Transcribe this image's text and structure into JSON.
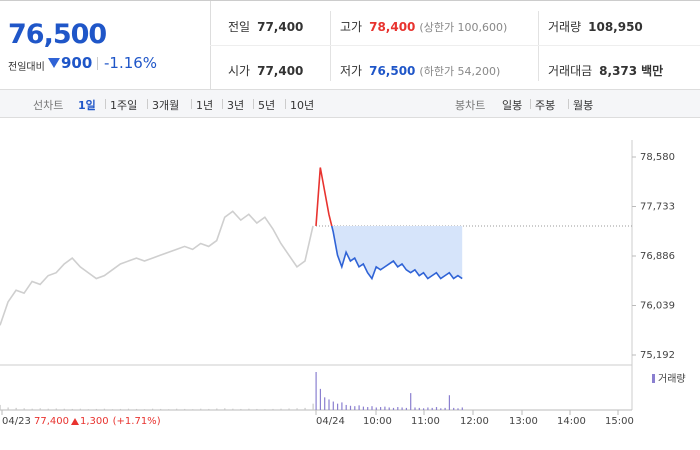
{
  "header": {
    "price": "76,500",
    "change_label": "전일대비",
    "change": "900",
    "change_pct": "-1.16%",
    "stats": [
      {
        "label": "전일",
        "value": "77,400"
      },
      {
        "label": "고가",
        "value": "78,400",
        "note": "(상한가 100,600)"
      },
      {
        "label": "거래량",
        "value": "108,950"
      },
      {
        "label": "시가",
        "value": "77,400"
      },
      {
        "label": "저가",
        "value": "76,500",
        "note": "(하한가 54,200)"
      },
      {
        "label": "거래대금",
        "value": "8,373",
        "note": "백만"
      }
    ]
  },
  "tabs": {
    "line_label": "선차트",
    "line_periods": [
      "1일",
      "1주일",
      "3개월",
      "1년",
      "3년",
      "5년",
      "10년"
    ],
    "candle_label": "봉차트",
    "candle_periods": [
      "일봉",
      "주봉",
      "월봉"
    ]
  },
  "chart_data": {
    "type": "line",
    "ylim": [
      75192,
      78580
    ],
    "yticks": [
      {
        "value": 75192,
        "label": "75,192"
      },
      {
        "value": 76039,
        "label": "76,039"
      },
      {
        "value": 76886,
        "label": "76,886"
      },
      {
        "value": 77733,
        "label": "77,733"
      },
      {
        "value": 78580,
        "label": "78,580"
      }
    ],
    "x_labels": [
      "04/23",
      "04/24",
      "10:00",
      "11:00",
      "12:00",
      "13:00",
      "14:00",
      "15:00"
    ],
    "reference": 77400,
    "up_color": "#e8332f",
    "down_color": "#2f63d6",
    "fill_color": "#d6e4fa",
    "series": [
      {
        "color": "#cfcfcf",
        "values": [
          75700,
          76100,
          76300,
          76250,
          76450,
          76400,
          76550,
          76600,
          76750,
          76850,
          76700,
          76600,
          76500,
          76550,
          76650,
          76750,
          76800,
          76850,
          76800,
          76850,
          76900,
          76950,
          77000,
          77050,
          77000,
          77100,
          77050,
          77150,
          77550,
          77650,
          77500,
          77600,
          77450,
          77550,
          77350,
          77100,
          76900,
          76700,
          76800,
          77400
        ]
      },
      {
        "values": [
          77400,
          78400,
          78000,
          77600,
          77300,
          76900,
          76700,
          76950,
          76800,
          76850,
          76700,
          76750,
          76600,
          76500,
          76700,
          76650,
          76700,
          76750,
          76800,
          76700,
          76750,
          76650,
          76600,
          76650,
          76550,
          76600,
          76500,
          76550,
          76600,
          76500,
          76550,
          76600,
          76500,
          76550,
          76500
        ]
      }
    ],
    "volume": {
      "legend": "거래량",
      "color": "#8a7fd0",
      "prev_color": "#c8c8c8",
      "prev_values": [
        1200,
        600,
        500,
        400,
        300,
        400,
        300,
        350,
        300,
        250,
        300,
        200,
        250,
        300,
        200,
        250,
        300,
        250,
        200,
        300,
        250,
        200,
        300,
        250,
        200,
        300,
        250,
        350,
        400,
        300,
        250,
        300,
        250,
        200,
        250,
        300,
        350,
        400,
        500,
        1500
      ],
      "values": [
        9000,
        5000,
        3000,
        2500,
        2000,
        1500,
        1800,
        1200,
        1000,
        900,
        1100,
        800,
        700,
        900,
        600,
        700,
        800,
        600,
        500,
        700,
        600,
        500,
        4000,
        600,
        500,
        400,
        600,
        500,
        700,
        400,
        500,
        3500,
        500,
        400,
        600
      ]
    },
    "footer": {
      "date": "04/23",
      "close": "77,400",
      "change": "1,300",
      "change_pct": "(+1.71%)"
    }
  }
}
